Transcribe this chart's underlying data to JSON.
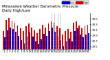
{
  "title": "Milwaukee Weather Barometric Pressure",
  "subtitle": "Daily High/Low",
  "days": [
    1,
    2,
    3,
    4,
    5,
    6,
    7,
    8,
    9,
    10,
    11,
    12,
    13,
    14,
    15,
    16,
    17,
    18,
    19,
    20,
    21,
    22,
    23,
    24,
    25,
    26,
    27,
    28,
    29,
    30,
    31
  ],
  "highs": [
    30.05,
    30.45,
    30.52,
    30.42,
    30.35,
    30.25,
    30.15,
    30.05,
    30.22,
    30.32,
    30.18,
    30.08,
    29.98,
    30.12,
    30.28,
    30.18,
    30.32,
    30.4,
    30.35,
    30.22,
    30.15,
    29.92,
    30.05,
    30.12,
    30.02,
    30.35,
    30.4,
    30.25,
    30.15,
    30.22,
    30.28
  ],
  "lows": [
    29.82,
    30.08,
    30.18,
    30.12,
    30.02,
    29.88,
    29.72,
    29.62,
    29.85,
    30.0,
    29.85,
    29.68,
    29.58,
    29.75,
    29.95,
    29.88,
    30.05,
    30.18,
    30.02,
    29.85,
    29.72,
    29.5,
    29.68,
    29.78,
    29.68,
    30.05,
    30.15,
    29.92,
    29.82,
    29.92,
    29.98
  ],
  "high_color": "#cc0000",
  "low_color": "#0000cc",
  "ylim_min": 29.4,
  "ylim_max": 30.7,
  "ytick_labels": [
    "29.5",
    "29.7",
    "29.9",
    "30.1",
    "30.3",
    "30.5"
  ],
  "ytick_vals": [
    29.5,
    29.7,
    29.9,
    30.1,
    30.3,
    30.5
  ],
  "background_color": "#ffffff",
  "title_fontsize": 4.0,
  "tick_fontsize": 2.8,
  "dashed_line_indices": [
    17,
    18,
    19,
    20
  ]
}
